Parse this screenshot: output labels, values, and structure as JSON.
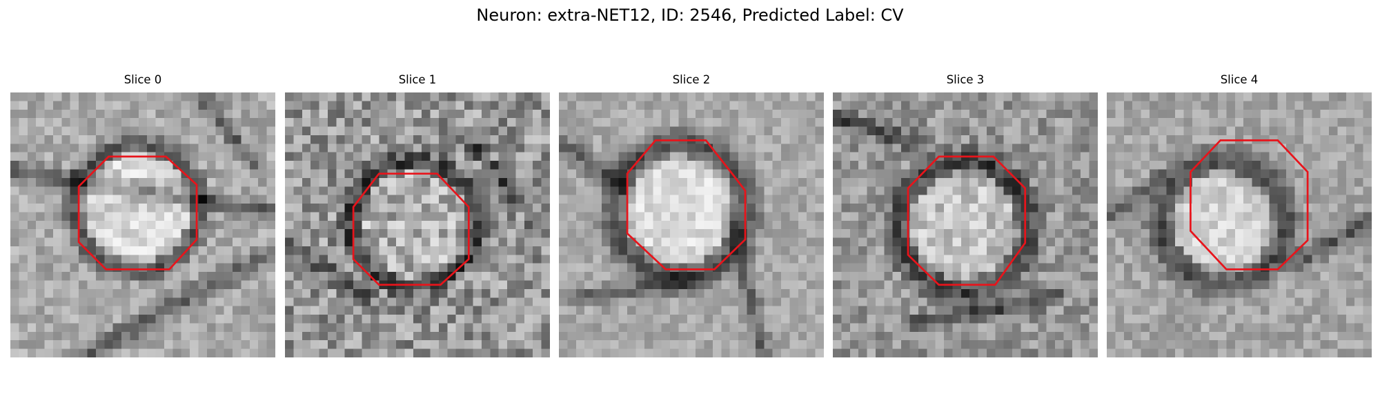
{
  "figure": {
    "title": "Neuron: extra-NET12, ID: 2546, Predicted Label: CV"
  },
  "colors": {
    "background": "#ffffff",
    "outline": "#e8141b",
    "membrane": "#1e1e1e",
    "tissue_light": "#d2d2d2"
  },
  "panels": [
    {
      "title": "Slice 0"
    },
    {
      "title": "Slice 1"
    },
    {
      "title": "Slice 2"
    },
    {
      "title": "Slice 3"
    },
    {
      "title": "Slice 4"
    }
  ]
}
